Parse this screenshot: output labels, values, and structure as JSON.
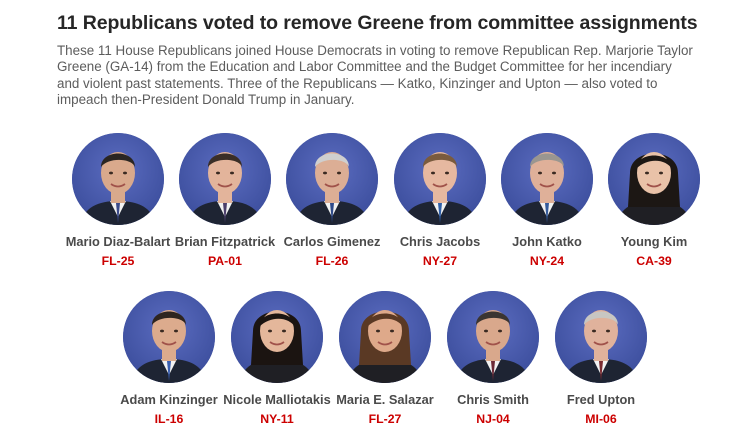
{
  "headline": "11 Republicans voted to remove Greene from committee assignments",
  "description": "These 11 House Republicans joined House Democrats in voting to remove Republican Rep. Marjorie Taylor Greene (GA-14) from the Education and Labor Committee and the Budget Committee for her incendiary and violent past statements. Three of the Republicans — Katko, Kinzinger and Upton — also voted to impeach then-President Donald Trump in January.",
  "colors": {
    "district": "#cc0000",
    "portrait_bg": "#3d4f9e"
  },
  "members": [
    {
      "name": "Mario Diaz-Balart",
      "district": "FL-25",
      "hair": "#2a2522",
      "skin": "#d9a98c",
      "tie": "#3a4a8a"
    },
    {
      "name": "Brian Fitzpatrick",
      "district": "PA-01",
      "hair": "#3a2e27",
      "skin": "#e3b49b",
      "tie": "#4b3f6b"
    },
    {
      "name": "Carlos Gimenez",
      "district": "FL-26",
      "hair": "#cfcfcf",
      "skin": "#dcae95",
      "tie": "#2e4a8a"
    },
    {
      "name": "Chris Jacobs",
      "district": "NY-27",
      "hair": "#7a5b3e",
      "skin": "#e6b8a0",
      "tie": "#2f5fa8"
    },
    {
      "name": "John Katko",
      "district": "NY-24",
      "hair": "#9a9690",
      "skin": "#dfb099",
      "tie": "#355b9c"
    },
    {
      "name": "Young Kim",
      "district": "CA-39",
      "hair": "#1c1714",
      "skin": "#e9c2a8",
      "tie": "#d76a79"
    },
    {
      "name": "Adam Kinzinger",
      "district": "IL-16",
      "hair": "#2e2520",
      "skin": "#dcab8d",
      "tie": "#3a5fb0"
    },
    {
      "name": "Nicole Malliotakis",
      "district": "NY-11",
      "hair": "#1b1411",
      "skin": "#e4b79b",
      "tie": "#1e1e22"
    },
    {
      "name": "Maria E. Salazar",
      "district": "FL-27",
      "hair": "#5a3924",
      "skin": "#dea98a",
      "tie": "#2a2a2e"
    },
    {
      "name": "Chris Smith",
      "district": "NJ-04",
      "hair": "#3b3532",
      "skin": "#d9a88c",
      "tie": "#6c2a36"
    },
    {
      "name": "Fred Upton",
      "district": "MI-06",
      "hair": "#c8c6c2",
      "skin": "#e0b29c",
      "tie": "#7a2a30"
    }
  ]
}
